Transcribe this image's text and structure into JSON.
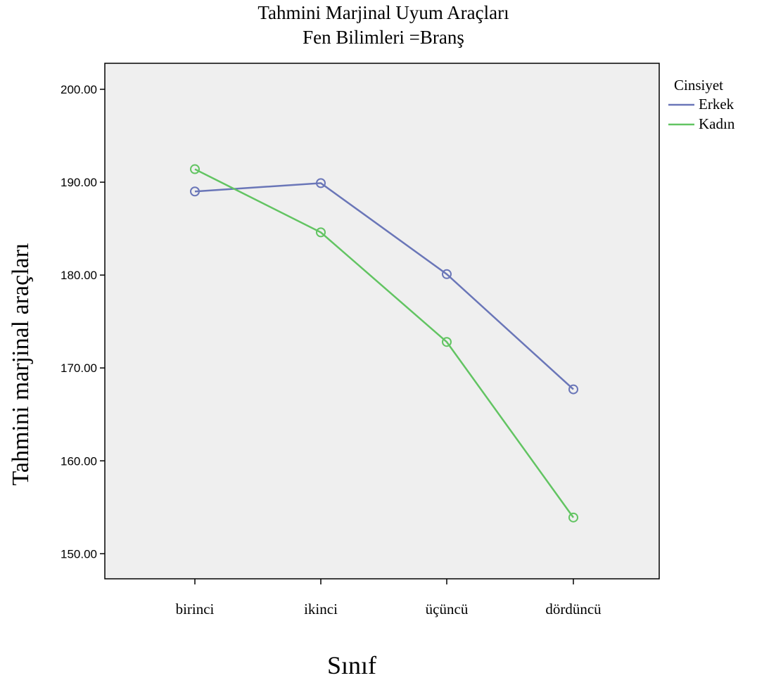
{
  "chart_data": {
    "type": "line",
    "title": "Tahmini Marjinal Uyum Araçları",
    "subtitle": "Fen Bilimleri =Branş",
    "xlabel": "Sınıf",
    "ylabel": "Tahmini marjinal araçları",
    "categories": [
      "birinci",
      "ikinci",
      "üçüncü",
      "dördüncü"
    ],
    "yticks": [
      "150.00",
      "160.00",
      "170.00",
      "180.00",
      "190.00",
      "200.00"
    ],
    "ylim": [
      147.3,
      202.8
    ],
    "grid": false,
    "legend": {
      "title": "Cinsiyet",
      "placement": "right"
    },
    "series": [
      {
        "name": "Erkek",
        "color": "#6a76b8",
        "values": [
          189.0,
          189.9,
          180.1,
          167.7
        ]
      },
      {
        "name": "Kadın",
        "color": "#62c462",
        "values": [
          191.4,
          184.6,
          172.8,
          153.9
        ]
      }
    ],
    "plot_background": "#efefef"
  }
}
